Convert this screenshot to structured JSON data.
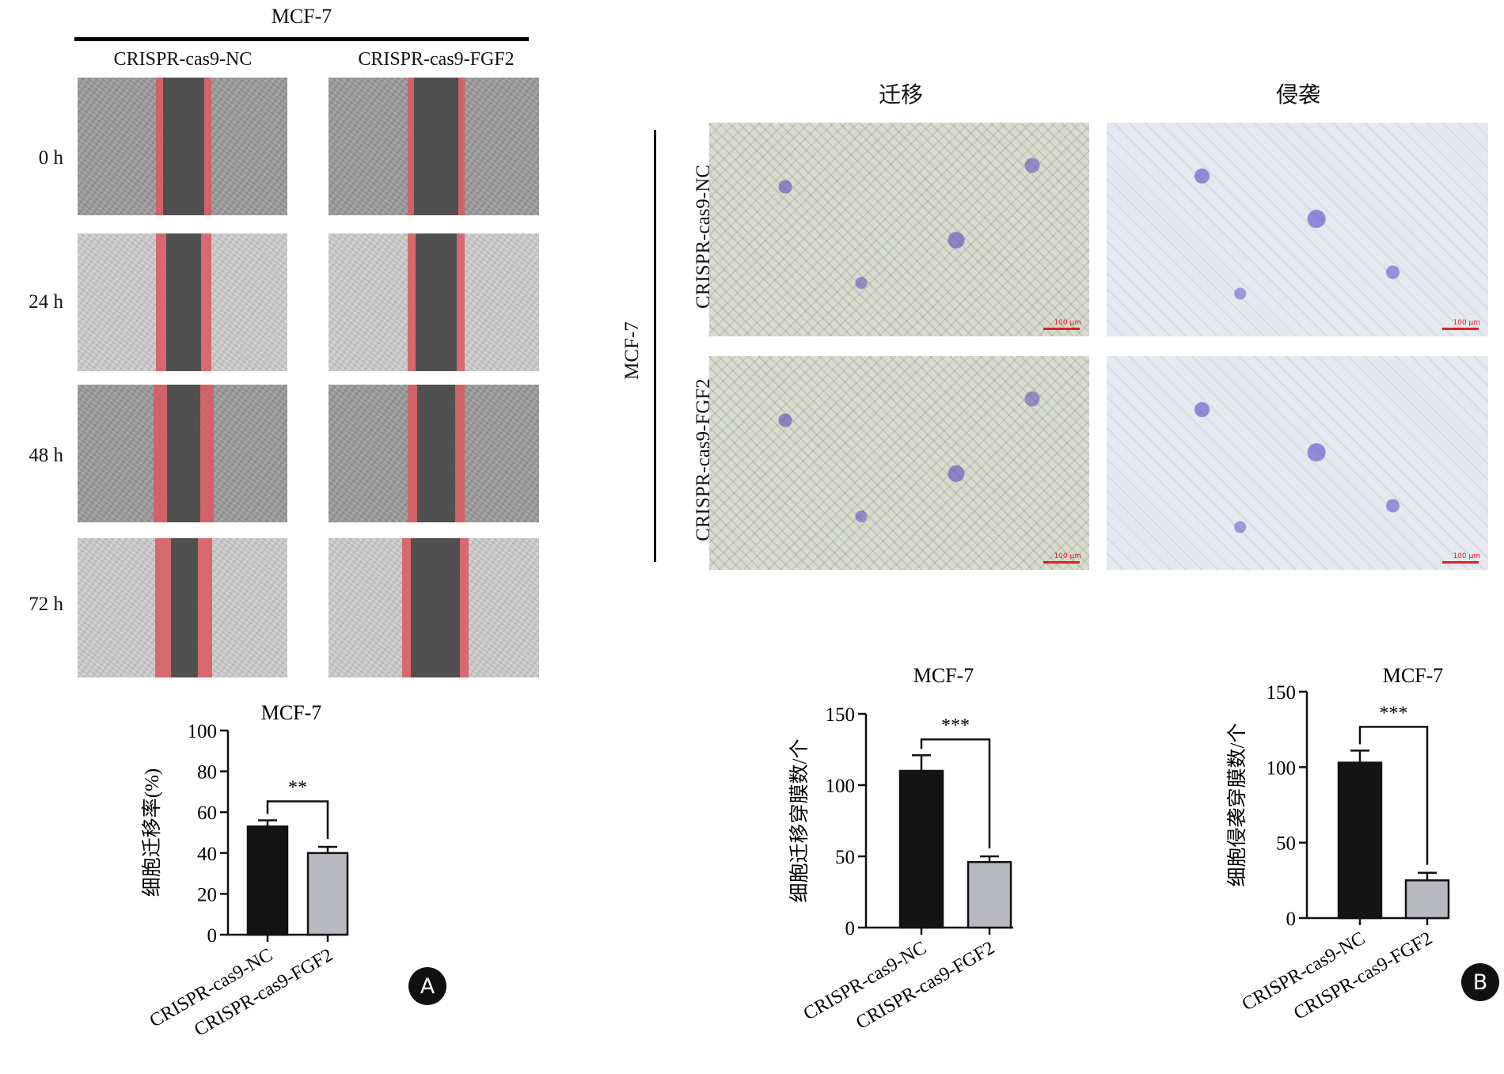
{
  "panelA": {
    "title": "MCF-7",
    "col_labels": [
      "CRISPR-cas9-NC",
      "CRISPR-cas9-FGF2"
    ],
    "row_labels": [
      "0 h",
      "24 h",
      "48 h",
      "72 h"
    ],
    "badge": "A"
  },
  "panelB": {
    "col_labels": [
      "迁移",
      "侵袭"
    ],
    "side_label": "MCF-7",
    "row_labels": [
      "CRISPR-cas9-NC",
      "CRISPR-cas9-FGF2"
    ],
    "scale_label": "100 μm",
    "badge": "B"
  },
  "colors": {
    "nc": "#141414",
    "fgf2": "#b9b9c1"
  },
  "chart_data": [
    {
      "type": "bar",
      "title": "MCF-7",
      "ylabel": "细胞迁移率(%)",
      "categories": [
        "CRISPR-cas9-NC",
        "CRISPR-cas9-FGF2"
      ],
      "values": [
        53,
        40
      ],
      "errors": [
        3,
        3
      ],
      "ylim": [
        0,
        100
      ],
      "yticks": [
        0,
        20,
        40,
        60,
        80,
        100
      ],
      "significance": "**"
    },
    {
      "type": "bar",
      "title": "MCF-7",
      "ylabel": "细胞迁移穿膜数/个",
      "categories": [
        "CRISPR-cas9-NC",
        "CRISPR-cas9-FGF2"
      ],
      "values": [
        110,
        46
      ],
      "errors": [
        11,
        4
      ],
      "ylim": [
        0,
        150
      ],
      "yticks": [
        0,
        50,
        100,
        150
      ],
      "significance": "***"
    },
    {
      "type": "bar",
      "title": "MCF-7",
      "ylabel": "细胞侵袭穿膜数/个",
      "categories": [
        "CRISPR-cas9-NC",
        "CRISPR-cas9-FGF2"
      ],
      "values": [
        103,
        25
      ],
      "errors": [
        8,
        5
      ],
      "ylim": [
        0,
        150
      ],
      "yticks": [
        0,
        50,
        100,
        150
      ],
      "significance": "***"
    }
  ]
}
